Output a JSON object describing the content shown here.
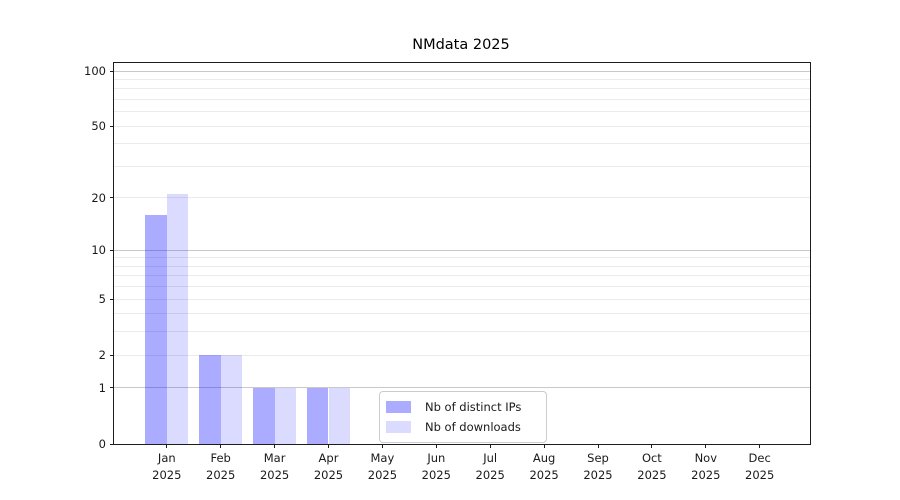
{
  "title": "NMdata 2025",
  "chart_data": {
    "type": "bar",
    "title": "NMdata 2025",
    "categories": [
      "Jan",
      "Feb",
      "Mar",
      "Apr",
      "May",
      "Jun",
      "Jul",
      "Aug",
      "Sep",
      "Oct",
      "Nov",
      "Dec"
    ],
    "category_year": "2025",
    "series": [
      {
        "name": "Nb of distinct IPs",
        "color": "rgba(0,0,255,0.33)",
        "color_hex": "#aaaaff",
        "values": [
          16,
          2,
          1,
          1,
          0,
          0,
          0,
          0,
          0,
          0,
          0,
          0
        ]
      },
      {
        "name": "Nb of downloads",
        "color": "rgba(0,0,255,0.14)",
        "color_hex": "#dcdcff",
        "values": [
          21,
          2,
          1,
          1,
          0,
          0,
          0,
          0,
          0,
          0,
          0,
          0
        ]
      }
    ],
    "y_scale": "log10(1+y)",
    "y_ticks": [
      0,
      1,
      2,
      5,
      10,
      20,
      50,
      100
    ],
    "y_gridlines_major": [
      1,
      10,
      100
    ],
    "y_gridlines_minor": [
      2,
      3,
      4,
      5,
      6,
      7,
      8,
      9,
      20,
      30,
      40,
      50,
      60,
      70,
      80,
      90
    ],
    "ylim": [
      0,
      110
    ],
    "xlabel": "",
    "ylabel": "",
    "grid": "horizontal",
    "legend_position": "lower center inside plot"
  },
  "colors": {
    "grid_major": "#c9c9c9",
    "grid_minor": "#ebebeb",
    "spine": "#1c1c1c",
    "text": "#1a1a1a",
    "background": "#ffffff"
  }
}
